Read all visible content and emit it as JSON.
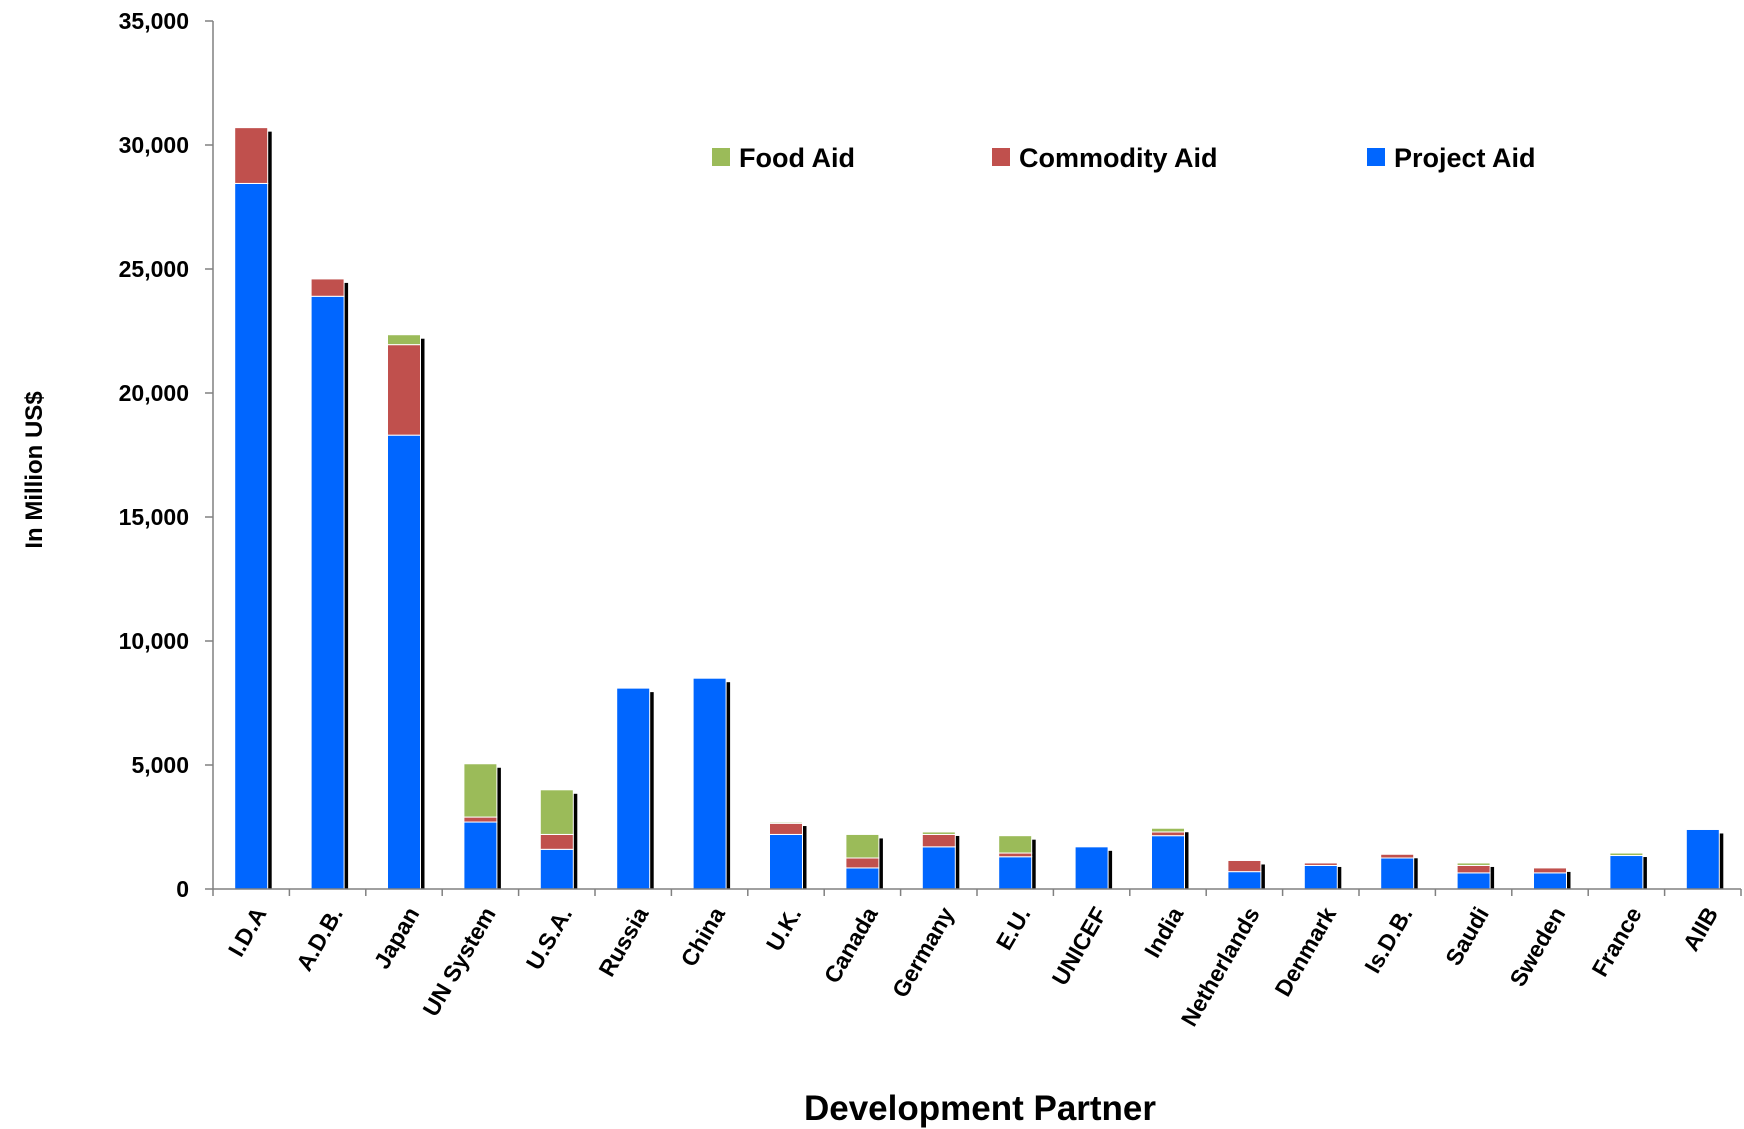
{
  "chart_data": {
    "type": "bar",
    "stacked": true,
    "title": "",
    "xlabel": "Development Partner",
    "ylabel": "In Million US$",
    "ylim": [
      0,
      35000
    ],
    "yticks": [
      0,
      5000,
      10000,
      15000,
      20000,
      25000,
      30000,
      35000
    ],
    "ytick_labels": [
      "0",
      "5,000",
      "10,000",
      "15,000",
      "20,000",
      "25,000",
      "30,000",
      "35,000"
    ],
    "grid": false,
    "legend_position": "top-right",
    "categories": [
      "I.D.A",
      "A.D.B.",
      "Japan",
      "UN System",
      "U.S.A.",
      "Russia",
      "China",
      "U.K.",
      "Canada",
      "Germany",
      "E.U.",
      "UNICEF",
      "India",
      "Netherlands",
      "Denmark",
      "Is.D.B.",
      "Saudi",
      "Sweden",
      "France",
      "AIIB"
    ],
    "series": [
      {
        "name": "Project Aid",
        "color": "#0066FF",
        "values": [
          28450,
          23900,
          18300,
          2700,
          1600,
          8100,
          8500,
          2200,
          850,
          1700,
          1300,
          1700,
          2150,
          700,
          950,
          1250,
          650,
          650,
          1350,
          2400
        ]
      },
      {
        "name": "Commodity Aid",
        "color": "#C0504D",
        "values": [
          2250,
          700,
          3650,
          200,
          600,
          0,
          0,
          450,
          400,
          500,
          150,
          0,
          150,
          450,
          100,
          150,
          300,
          200,
          0,
          0
        ]
      },
      {
        "name": "Food Aid",
        "color": "#9BBB59",
        "values": [
          0,
          0,
          400,
          2150,
          1800,
          0,
          0,
          50,
          950,
          100,
          700,
          0,
          150,
          0,
          0,
          0,
          100,
          0,
          100,
          0
        ]
      }
    ],
    "legend_order": [
      "Food Aid",
      "Commodity Aid",
      "Project Aid"
    ],
    "shadow_color": "#000000",
    "axis_color": "#808080"
  }
}
